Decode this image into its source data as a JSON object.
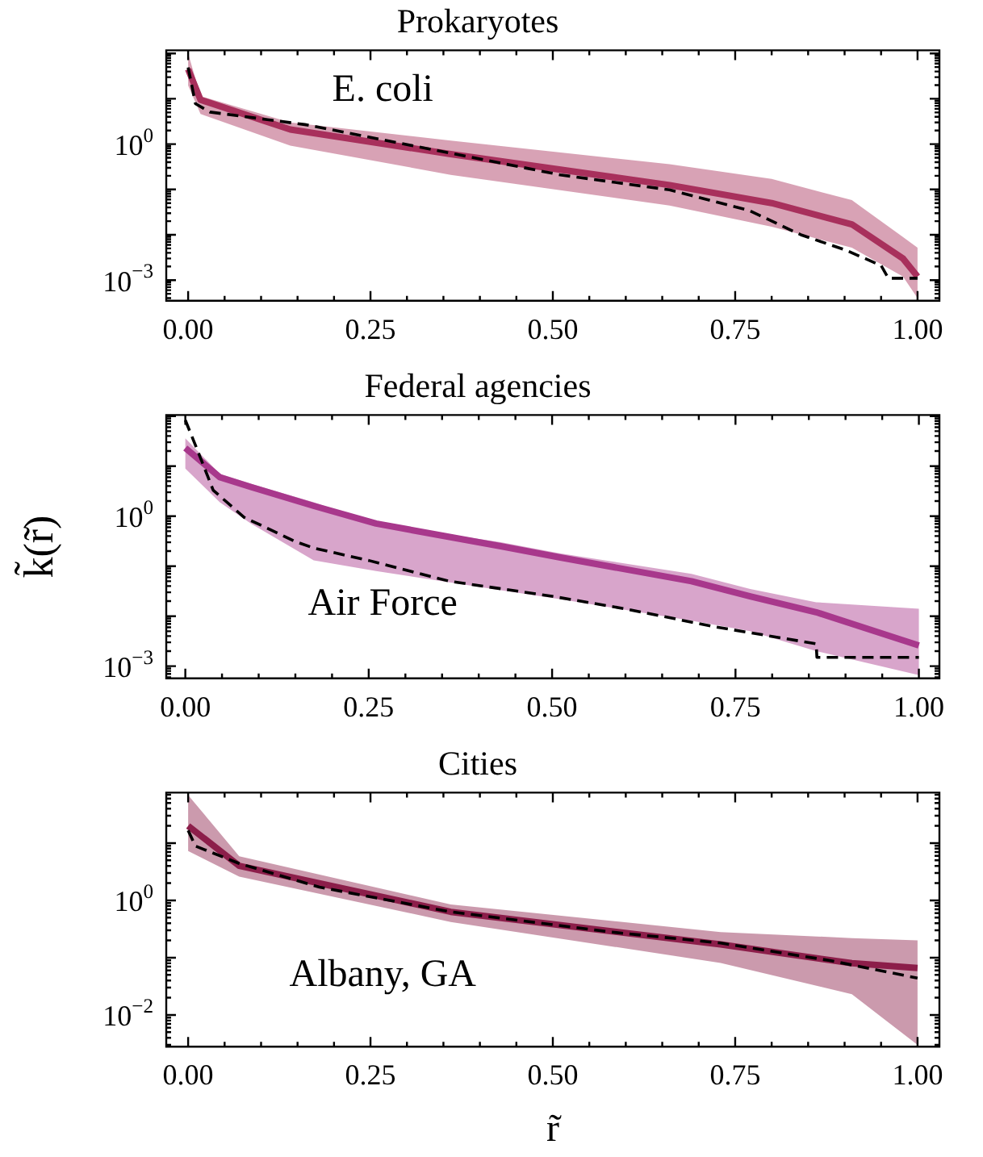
{
  "chart_data": [
    {
      "type": "line",
      "title": "Prokaryotes",
      "xlim": [
        -0.03,
        1.03
      ],
      "ylim": [
        0.00035,
        117
      ],
      "log": "y",
      "grid": false,
      "legend": false,
      "marker": "none",
      "xticks": [
        {
          "value": 0,
          "label": "0.00"
        },
        {
          "value": 0.25,
          "label": "0.25"
        },
        {
          "value": 0.5,
          "label": "0.50"
        },
        {
          "value": 0.75,
          "label": "0.75"
        },
        {
          "value": 1,
          "label": "1.00"
        }
      ],
      "yticks": [
        {
          "value": 1,
          "label": "10$^{0}$"
        },
        {
          "value": 0.001,
          "label": "10$^{−3}$"
        }
      ],
      "series": [
        {
          "color": "#a8305c",
          "line_style": "solid",
          "x": [
            0,
            0.017,
            0.14,
            0.36,
            0.66,
            0.8,
            0.91,
            0.98,
            1
          ],
          "values": [
            45,
            9.5,
            2.1,
            0.6,
            0.125,
            0.05,
            0.017,
            0.003,
            0.0012
          ],
          "lower": [
            19.5,
            4.6,
            0.93,
            0.21,
            0.044,
            0.015,
            0.0052,
            0.0012,
            0.0004
          ],
          "upper": [
            100,
            11.5,
            3.0,
            1.2,
            0.36,
            0.17,
            0.058,
            0.0089,
            0.0052
          ]
        },
        {
          "color": "#000000",
          "line_style": "dashed",
          "x": [
            0,
            0.01,
            0.03,
            0.16,
            0.29,
            0.51,
            0.66,
            0.77,
            0.84,
            0.9,
            0.95,
            0.96,
            1
          ],
          "values": [
            49,
            7.8,
            5.1,
            2.7,
            1.05,
            0.21,
            0.098,
            0.034,
            0.01,
            0.0047,
            0.0021,
            0.0011,
            0.0011
          ]
        }
      ],
      "annotations": [
        "E. coli"
      ]
    },
    {
      "type": "line",
      "title": "Federal agencies",
      "ylabel": "k̃(r̃)",
      "xlim": [
        -0.026,
        1.028
      ],
      "ylim": [
        0.00057,
        105
      ],
      "log": "y",
      "grid": false,
      "legend": false,
      "marker": "none",
      "xticks": [
        {
          "value": 0,
          "label": "0.00"
        },
        {
          "value": 0.25,
          "label": "0.25"
        },
        {
          "value": 0.5,
          "label": "0.50"
        },
        {
          "value": 0.75,
          "label": "0.75"
        },
        {
          "value": 1,
          "label": "1.00"
        }
      ],
      "yticks": [
        {
          "value": 1,
          "label": "10$^{0}$"
        },
        {
          "value": 0.001,
          "label": "10$^{−3}$"
        }
      ],
      "series": [
        {
          "color": "#a8388c",
          "line_style": "solid",
          "x": [
            0,
            0.047,
            0.09,
            0.175,
            0.26,
            0.43,
            0.51,
            0.69,
            0.77,
            0.86,
            1
          ],
          "values": [
            23,
            6,
            3.8,
            1.6,
            0.71,
            0.25,
            0.15,
            0.05,
            0.025,
            0.012,
            0.0026
          ],
          "lower": [
            8.9,
            1.9,
            0.7,
            0.13,
            0.08,
            0.033,
            0.022,
            0.0081,
            0.005,
            0.002,
            0.00066
          ],
          "upper": [
            36,
            7,
            4.4,
            1.9,
            0.71,
            0.3,
            0.18,
            0.07,
            0.035,
            0.019,
            0.014
          ]
        },
        {
          "color": "#000000",
          "line_style": "dashed",
          "x": [
            0,
            0.017,
            0.038,
            0.08,
            0.15,
            0.175,
            0.25,
            0.36,
            0.5,
            0.6,
            0.72,
            0.86,
            0.861,
            1
          ],
          "values": [
            83,
            20,
            3.3,
            0.95,
            0.31,
            0.23,
            0.13,
            0.05,
            0.025,
            0.014,
            0.0062,
            0.0028,
            0.0015,
            0.0015
          ]
        }
      ],
      "annotations": [
        "Air Force"
      ]
    },
    {
      "type": "line",
      "title": "Cities",
      "xlabel": "r̃",
      "xlim": [
        -0.03,
        1.03
      ],
      "ylim": [
        0.0028,
        76
      ],
      "log": "y",
      "grid": false,
      "legend": false,
      "marker": "none",
      "xticks": [
        {
          "value": 0,
          "label": "0.00"
        },
        {
          "value": 0.25,
          "label": "0.25"
        },
        {
          "value": 0.5,
          "label": "0.50"
        },
        {
          "value": 0.75,
          "label": "0.75"
        },
        {
          "value": 1,
          "label": "1.00"
        }
      ],
      "yticks": [
        {
          "value": 1,
          "label": "10$^{0}$"
        },
        {
          "value": 0.01,
          "label": "10$^{−2}$"
        }
      ],
      "series": [
        {
          "color": "#8c1e4a",
          "line_style": "solid",
          "x": [
            0,
            0.07,
            0.36,
            0.73,
            0.91,
            1
          ],
          "values": [
            20,
            4,
            0.63,
            0.17,
            0.08,
            0.066
          ],
          "lower": [
            7.3,
            2.6,
            0.42,
            0.081,
            0.023,
            0.003
          ],
          "upper": [
            69,
            5.9,
            0.85,
            0.28,
            0.22,
            0.2
          ]
        },
        {
          "color": "#000000",
          "line_style": "dashed",
          "x": [
            0,
            0.01,
            0.07,
            0.18,
            0.36,
            0.58,
            0.73,
            0.88,
            1
          ],
          "values": [
            16.6,
            8.9,
            4.4,
            1.7,
            0.63,
            0.28,
            0.18,
            0.089,
            0.044
          ]
        }
      ],
      "annotations": [
        "Albany, GA"
      ]
    }
  ]
}
